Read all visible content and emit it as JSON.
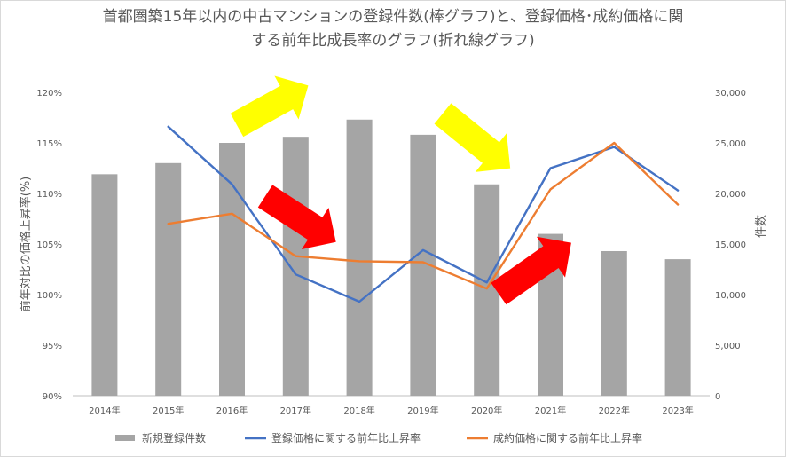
{
  "chart_data": {
    "type": "bar+line",
    "title_line1": "首都圏築15年以内の中古マンションの登録件数(棒グラフ)と、登録価格･成約価格に関",
    "title_line2": "する前年比成長率のグラフ(折れ線グラフ)",
    "categories": [
      "2014年",
      "2015年",
      "2016年",
      "2017年",
      "2018年",
      "2019年",
      "2020年",
      "2021年",
      "2022年",
      "2023年"
    ],
    "y_left_label": "前年対比の価格上昇率(%)",
    "y_left_ticks": [
      "90%",
      "95%",
      "100%",
      "105%",
      "110%",
      "115%",
      "120%"
    ],
    "y_left_range": [
      90,
      120
    ],
    "y_right_label": "件数",
    "y_right_ticks": [
      "0",
      "5,000",
      "10,000",
      "15,000",
      "20,000",
      "25,000",
      "30,000"
    ],
    "y_right_range": [
      0,
      30000
    ],
    "series": [
      {
        "name": "新規登録件数",
        "type": "bar",
        "axis": "right",
        "color": "#a5a5a5",
        "values": [
          21900,
          23000,
          25000,
          25600,
          27300,
          25800,
          20900,
          16000,
          14300,
          13500
        ]
      },
      {
        "name": "登録価格に関する前年比上昇率",
        "type": "line",
        "axis": "left",
        "color": "#4472c4",
        "values": [
          null,
          116.6,
          110.9,
          102.0,
          99.3,
          104.4,
          101.2,
          112.5,
          114.6,
          110.3
        ]
      },
      {
        "name": "成約価格に関する前年比上昇率",
        "type": "line",
        "axis": "left",
        "color": "#ed7d31",
        "values": [
          null,
          107.0,
          108.0,
          103.8,
          103.3,
          103.2,
          100.6,
          110.4,
          115.0,
          108.9
        ]
      }
    ],
    "annotations": [
      {
        "type": "arrow",
        "color": "#ffff00",
        "direction": "up-right"
      },
      {
        "type": "arrow",
        "color": "#ff0000",
        "direction": "down-right"
      },
      {
        "type": "arrow",
        "color": "#ffff00",
        "direction": "down-right"
      },
      {
        "type": "arrow",
        "color": "#ff0000",
        "direction": "up-right"
      }
    ],
    "legend_position": "bottom",
    "grid": false
  }
}
